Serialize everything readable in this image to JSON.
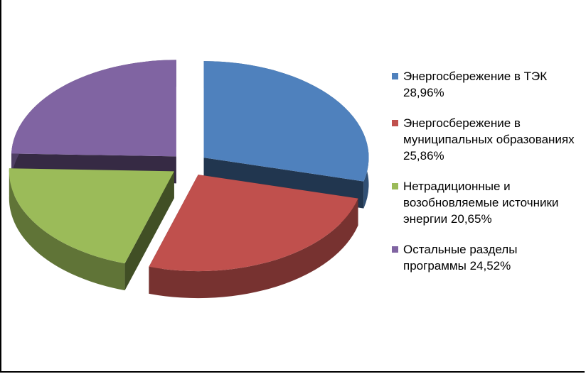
{
  "chart_data": {
    "type": "pie",
    "style": "3d-exploded",
    "title": "",
    "legend_position": "right",
    "slices": [
      {
        "label": "Энергосбережение в ТЭК",
        "value": 28.96,
        "value_label": "28,96%",
        "color": "#4F81BD"
      },
      {
        "label": "Энергосбережение в муниципальных образованиях",
        "value": 25.86,
        "value_label": "25,86%",
        "color": "#C0504D"
      },
      {
        "label": "Нетрадиционные и возобновляемые источники энергии",
        "value": 20.65,
        "value_label": "20,65%",
        "color": "#9BBB59"
      },
      {
        "label": "Остальные разделы программы",
        "value": 24.52,
        "value_label": "24,52%",
        "color": "#8064A2"
      }
    ]
  }
}
